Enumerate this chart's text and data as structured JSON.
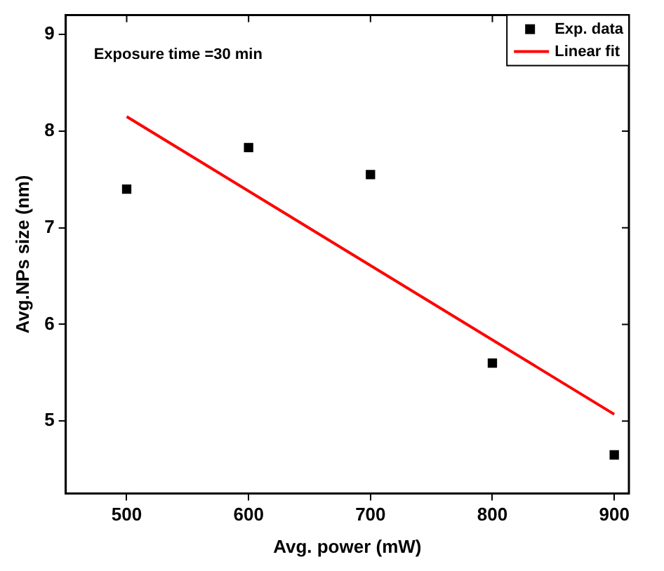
{
  "chart_data": {
    "type": "scatter",
    "xlabel": "Avg. power (mW)",
    "ylabel": "Avg.NPs size (nm)",
    "annotations": [
      "Exposure time =30 min"
    ],
    "series": [
      {
        "name": "Exp. data",
        "type": "scatter",
        "color": "#000000",
        "marker": "square",
        "x": [
          500,
          600,
          700,
          800,
          900
        ],
        "values": [
          7.4,
          7.83,
          7.55,
          5.6,
          4.65
        ]
      },
      {
        "name": "Linear fit",
        "type": "line",
        "color": "#ff0000",
        "marker": "none",
        "x": [
          500,
          900
        ],
        "values": [
          8.15,
          5.07
        ]
      }
    ],
    "xlim": [
      450,
      912
    ],
    "xticks": [
      500,
      600,
      700,
      800,
      900
    ],
    "ylim": [
      4.25,
      9.2
    ],
    "yticks": [
      5,
      6,
      7,
      8,
      9
    ],
    "grid": false,
    "legend": "top right"
  }
}
